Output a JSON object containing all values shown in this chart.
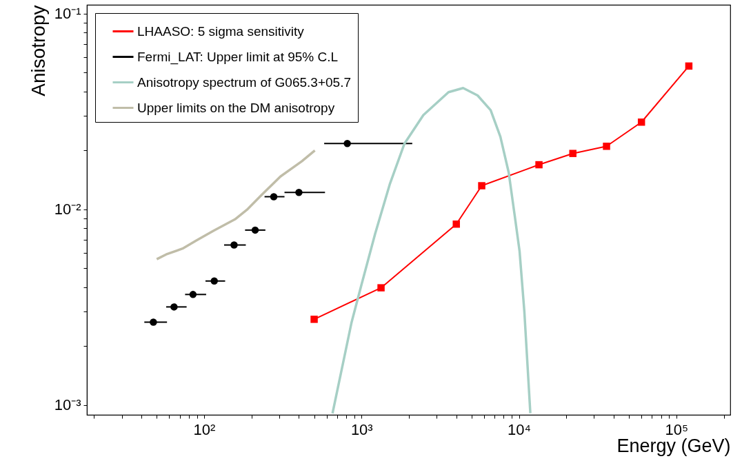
{
  "chart_data": {
    "type": "line",
    "xlabel": "Energy (GeV)",
    "ylabel": "Anisotropy",
    "log": "xy",
    "legend": "top left",
    "grid": false,
    "xlim": [
      18,
      220000
    ],
    "ylim": [
      0.00089,
      0.111
    ],
    "xticks": [
      {
        "value": 20,
        "label": null
      },
      {
        "value": 30,
        "label": null
      },
      {
        "value": 40,
        "label": null
      },
      {
        "value": 50,
        "label": null
      },
      {
        "value": 60,
        "label": null
      },
      {
        "value": 70,
        "label": null
      },
      {
        "value": 80,
        "label": null
      },
      {
        "value": 90,
        "label": null
      },
      {
        "value": 100,
        "label": "10²"
      },
      {
        "value": 200,
        "label": null
      },
      {
        "value": 300,
        "label": null
      },
      {
        "value": 400,
        "label": null
      },
      {
        "value": 500,
        "label": null
      },
      {
        "value": 600,
        "label": null
      },
      {
        "value": 700,
        "label": null
      },
      {
        "value": 800,
        "label": null
      },
      {
        "value": 900,
        "label": null
      },
      {
        "value": 1000,
        "label": "10³"
      },
      {
        "value": 2000,
        "label": null
      },
      {
        "value": 3000,
        "label": null
      },
      {
        "value": 4000,
        "label": null
      },
      {
        "value": 5000,
        "label": null
      },
      {
        "value": 6000,
        "label": null
      },
      {
        "value": 7000,
        "label": null
      },
      {
        "value": 8000,
        "label": null
      },
      {
        "value": 9000,
        "label": null
      },
      {
        "value": 10000,
        "label": "10⁴"
      },
      {
        "value": 20000,
        "label": null
      },
      {
        "value": 30000,
        "label": null
      },
      {
        "value": 40000,
        "label": null
      },
      {
        "value": 50000,
        "label": null
      },
      {
        "value": 60000,
        "label": null
      },
      {
        "value": 70000,
        "label": null
      },
      {
        "value": 80000,
        "label": null
      },
      {
        "value": 90000,
        "label": null
      },
      {
        "value": 100000,
        "label": "10⁵"
      },
      {
        "value": 200000,
        "label": null
      }
    ],
    "yticks": [
      {
        "value": 0.001,
        "label": "10⁻³"
      },
      {
        "value": 0.002,
        "label": null
      },
      {
        "value": 0.003,
        "label": null
      },
      {
        "value": 0.004,
        "label": null
      },
      {
        "value": 0.005,
        "label": null
      },
      {
        "value": 0.006,
        "label": null
      },
      {
        "value": 0.007,
        "label": null
      },
      {
        "value": 0.008,
        "label": null
      },
      {
        "value": 0.009,
        "label": null
      },
      {
        "value": 0.01,
        "label": "10⁻²"
      },
      {
        "value": 0.02,
        "label": null
      },
      {
        "value": 0.03,
        "label": null
      },
      {
        "value": 0.04,
        "label": null
      },
      {
        "value": 0.05,
        "label": null
      },
      {
        "value": 0.06,
        "label": null
      },
      {
        "value": 0.07,
        "label": null
      },
      {
        "value": 0.08,
        "label": null
      },
      {
        "value": 0.09,
        "label": null
      },
      {
        "value": 0.1,
        "label": "10⁻¹"
      }
    ],
    "series": [
      {
        "name": "LHAASO: 5 sigma sensitivity",
        "color": "#ff0000",
        "marker": "square",
        "x": [
          500,
          1330,
          4000,
          5800,
          13400,
          22000,
          36000,
          60000,
          120000
        ],
        "values": [
          0.00274,
          0.00397,
          0.0084,
          0.0132,
          0.0169,
          0.0193,
          0.021,
          0.0279,
          0.054
        ]
      },
      {
        "name": "Fermi_LAT: Upper limit at 95% C.L",
        "type": "scatter",
        "color": "#000000",
        "marker": "circle",
        "x": [
          47.6,
          64.4,
          85,
          116,
          155,
          211,
          277,
          400,
          812
        ],
        "values": [
          0.00265,
          0.00317,
          0.00367,
          0.0043,
          0.00657,
          0.00783,
          0.0116,
          0.0122,
          0.0217
        ],
        "xerrors": [
          [
            41.7,
            58.1
          ],
          [
            57.4,
            77.4
          ],
          [
            75.7,
            103
          ],
          [
            102,
            136
          ],
          [
            134,
            184
          ],
          [
            182,
            245
          ],
          [
            242,
            324
          ],
          [
            324,
            586
          ],
          [
            579,
            2100
          ]
        ]
      },
      {
        "name": "Anisotropy spectrum of G065.3+05.7",
        "color": "#a6cfc5",
        "marker": "none",
        "x": [
          654,
          865,
          993,
          1220,
          1510,
          1870,
          2470,
          3570,
          4420,
          5460,
          6610,
          7620,
          8610,
          9400,
          10090,
          10820,
          11810
        ],
        "values": [
          0.000906,
          0.00265,
          0.00404,
          0.0075,
          0.0134,
          0.0216,
          0.0303,
          0.0397,
          0.0417,
          0.0382,
          0.0321,
          0.0235,
          0.0154,
          0.00927,
          0.00611,
          0.00301,
          0.000908
        ]
      },
      {
        "name": "Upper limits on the DM anisotropy",
        "color": "#c0bda8",
        "marker": "none",
        "x": [
          50,
          57.4,
          73,
          90,
          115,
          157,
          187,
          231,
          305,
          417,
          505
        ],
        "values": [
          0.00556,
          0.00588,
          0.0063,
          0.00695,
          0.00778,
          0.00889,
          0.00994,
          0.0118,
          0.0147,
          0.0176,
          0.02
        ]
      }
    ]
  }
}
